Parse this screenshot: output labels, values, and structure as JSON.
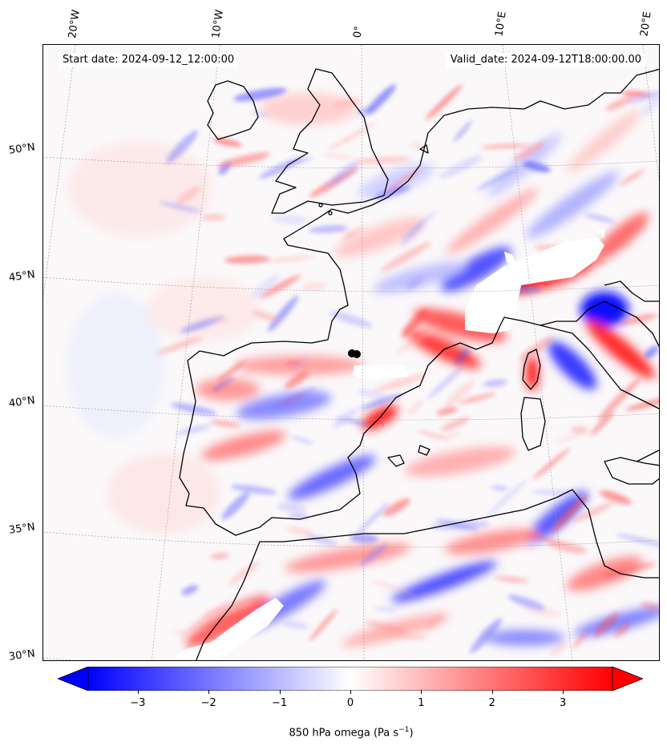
{
  "header": {
    "start_date": "Start date: 2024-09-12_12:00:00",
    "valid_date": "Valid_date: 2024-09-12T18:00:00.00"
  },
  "map": {
    "projection": "lambert-conformal",
    "field": "850 hPa omega",
    "extent": {
      "lon_min": -20,
      "lon_max": 20,
      "lat_min": 30,
      "lat_max": 53
    },
    "longitude_labels": [
      "20°W",
      "10°W",
      "0°",
      "10°E",
      "20°E"
    ],
    "latitude_labels": [
      "50°N",
      "45°N",
      "40°N",
      "35°N",
      "30°N"
    ],
    "colors": {
      "negative": "#0000ff",
      "neutral": "#ffffff",
      "positive": "#ff0000",
      "coast": "#000000",
      "land_mask": "#ffffff"
    }
  },
  "colorbar": {
    "cmap": "bwr",
    "vmin": -3.7,
    "vmax": 3.7,
    "extend": "both",
    "ticks": [
      "−3",
      "−2",
      "−1",
      "0",
      "1",
      "2",
      "3"
    ],
    "tick_values": [
      -3,
      -2,
      -1,
      0,
      1,
      2,
      3
    ],
    "label_text": "850 hPa omega (Pa s",
    "label_exponent": "−1",
    "label_close": ")"
  }
}
